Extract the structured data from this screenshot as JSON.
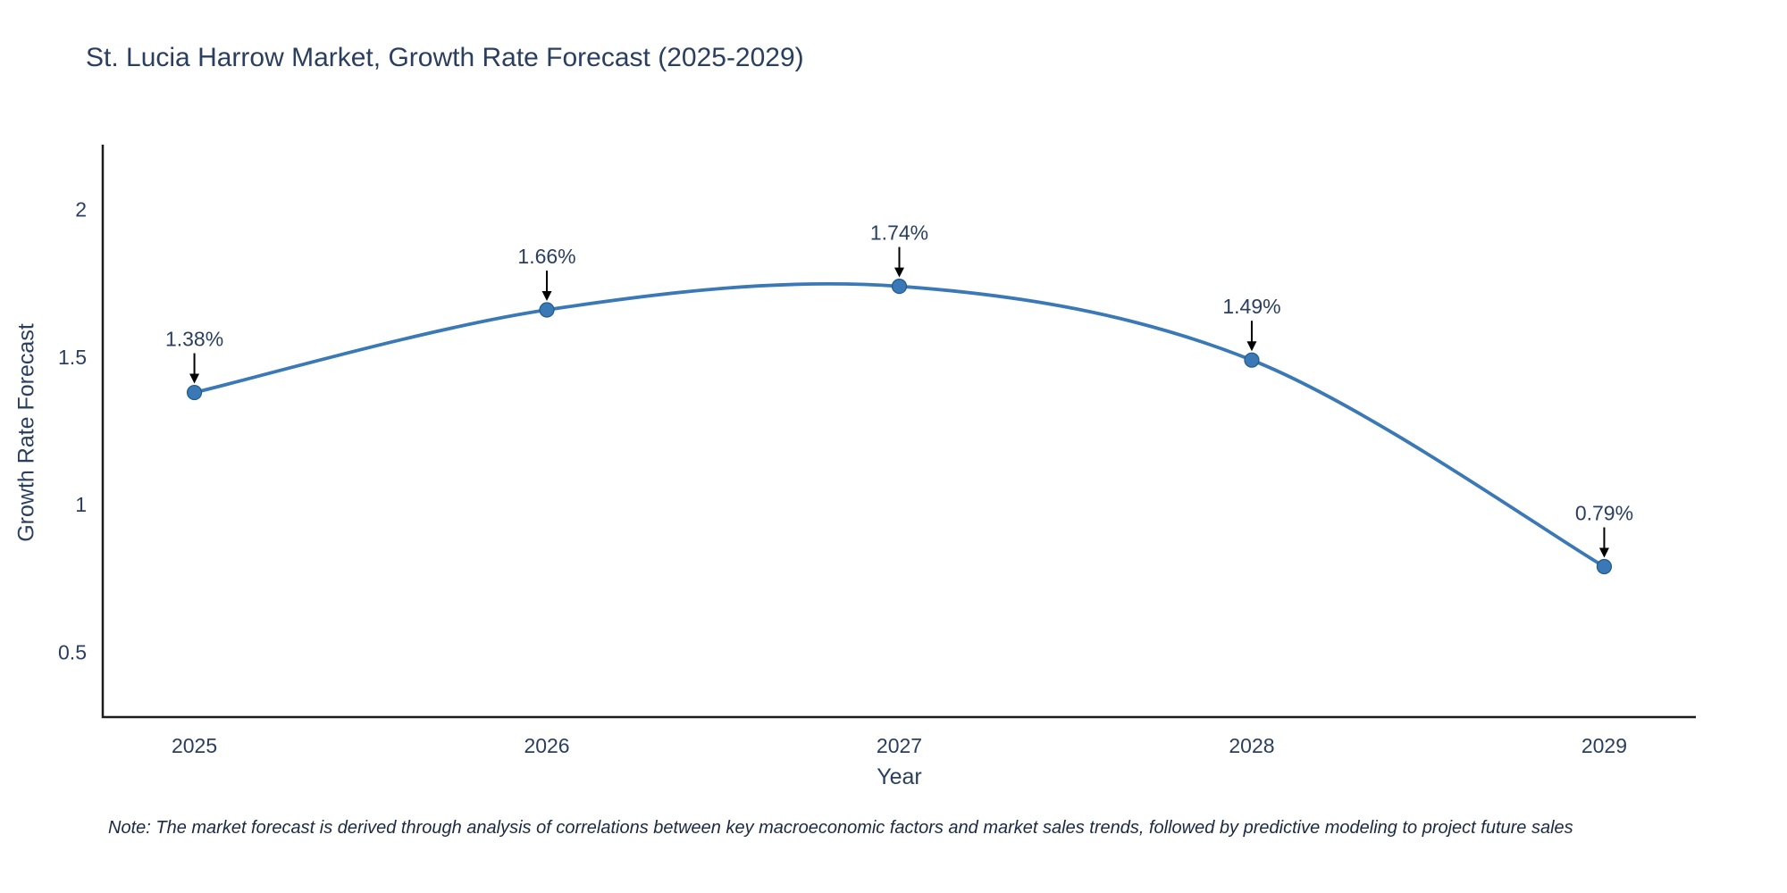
{
  "title": "St. Lucia Harrow Market, Growth Rate Forecast (2025-2029)",
  "note": "Note: The market forecast is derived through analysis of correlations between key macroeconomic factors and market sales trends, followed by predictive modeling to project future sales",
  "chart_data": {
    "type": "line",
    "title": "St. Lucia Harrow Market, Growth Rate Forecast (2025-2029)",
    "xlabel": "Year",
    "ylabel": "Growth Rate Forecast",
    "x": [
      2025,
      2026,
      2027,
      2028,
      2029
    ],
    "values": [
      1.38,
      1.66,
      1.74,
      1.49,
      0.79
    ],
    "point_labels": [
      "1.38%",
      "1.66%",
      "1.74%",
      "1.49%",
      "0.79%"
    ],
    "xtick_labels": [
      "2025",
      "2026",
      "2027",
      "2028",
      "2029"
    ],
    "yticks": [
      0.5,
      1,
      1.5,
      2
    ],
    "ytick_labels": [
      "0.5",
      "1",
      "1.5",
      "2"
    ],
    "xlim": [
      2024.74,
      2029.26
    ],
    "ylim": [
      0.28,
      2.22
    ],
    "grid": false,
    "legend": "none",
    "line_shape": "spline",
    "line_color": "#3a79b6",
    "marker_color": "#3a79b6",
    "marker_edge_color": "#205a8c",
    "axis_color": "#1c1c1c",
    "text_color": "#2a3f5f",
    "annotation_arrow_color": "#000000"
  }
}
